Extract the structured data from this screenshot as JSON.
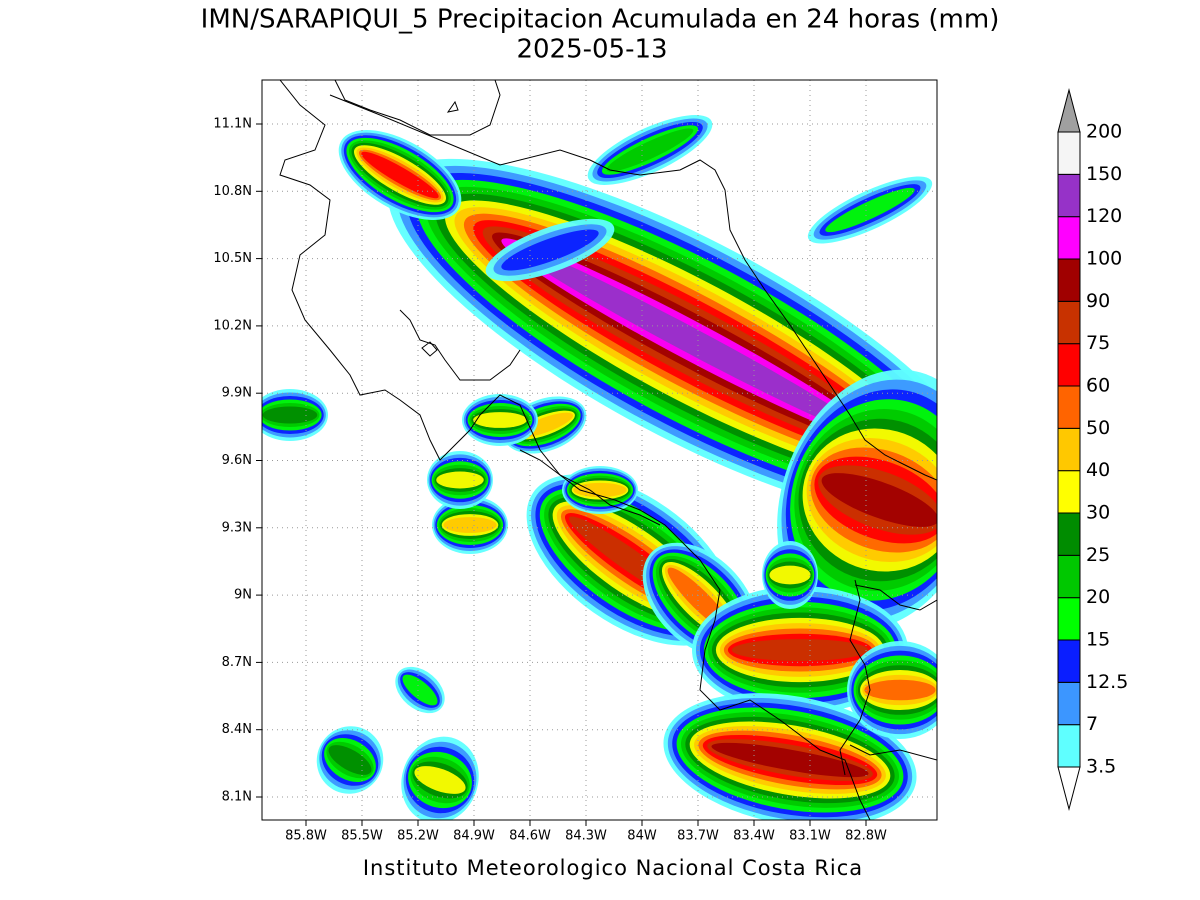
{
  "title": "IMN/SARAPIQUI_5 Precipitacion Acumulada en 24 horas (mm)",
  "subtitle": "2025-05-13",
  "map": {
    "lat_labels": [
      "11.1N",
      "10.8N",
      "10.5N",
      "10.2N",
      "9.9N",
      "9.6N",
      "9.3N",
      "9N",
      "8.7N",
      "8.4N",
      "8.1N"
    ],
    "lon_labels": [
      "85.8W",
      "85.5W",
      "85.2W",
      "84.9W",
      "84.6W",
      "84.3W",
      "84W",
      "83.7W",
      "83.4W",
      "83.1W",
      "82.8W"
    ]
  },
  "colorbar": {
    "levels": [
      3.5,
      7,
      12.5,
      15,
      20,
      25,
      30,
      40,
      50,
      60,
      75,
      90,
      100,
      120,
      150,
      200
    ],
    "colors": [
      "#5fffff",
      "#3c96ff",
      "#0a1eff",
      "#00ff00",
      "#00c800",
      "#008c00",
      "#ffff00",
      "#ffc800",
      "#ff6400",
      "#ff0000",
      "#c83200",
      "#a00000",
      "#ff00ff",
      "#9632c8",
      "#f5f5f5"
    ],
    "over_color": "#a0a0a0",
    "under_color": "#ffffff"
  },
  "footer": "Instituto Meteorologico Nacional Costa Rica"
}
